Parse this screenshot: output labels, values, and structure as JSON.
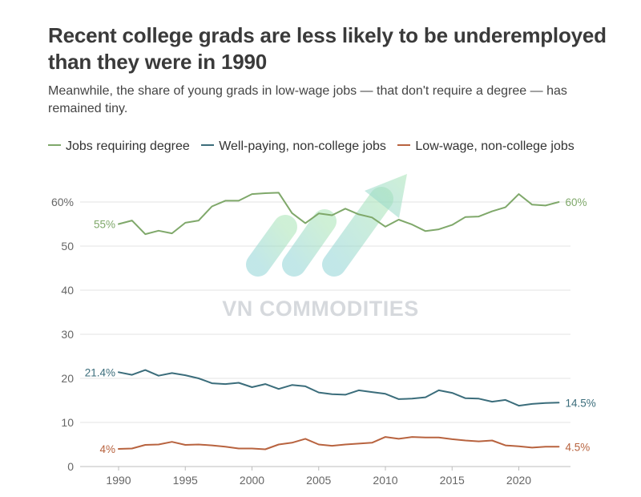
{
  "title": "Recent college grads are less likely to be underemployed than they were in 1990",
  "subtitle": "Meanwhile, the share of young grads in low-wage jobs — that don't require a degree — has remained tiny.",
  "watermark": "VN COMMODITIES",
  "chart_data": {
    "type": "line",
    "x": [
      1990,
      1991,
      1992,
      1993,
      1994,
      1995,
      1996,
      1997,
      1998,
      1999,
      2000,
      2001,
      2002,
      2003,
      2004,
      2005,
      2006,
      2007,
      2008,
      2009,
      2010,
      2011,
      2012,
      2013,
      2014,
      2015,
      2016,
      2017,
      2018,
      2019,
      2020,
      2021,
      2022,
      2023
    ],
    "series": [
      {
        "name": "Jobs requiring degree",
        "color": "#7fa86a",
        "values": [
          55,
          55.8,
          52.7,
          53.5,
          52.9,
          55.3,
          55.8,
          59,
          60.3,
          60.3,
          61.8,
          62,
          62.1,
          57.5,
          55.2,
          57.4,
          57,
          58.5,
          57.2,
          56.5,
          54.4,
          56,
          54.9,
          53.4,
          53.8,
          54.8,
          56.6,
          56.7,
          57.9,
          58.8,
          61.8,
          59.4,
          59.2,
          60
        ],
        "start_label": "55%",
        "end_label": "60%"
      },
      {
        "name": "Well-paying, non-college jobs",
        "color": "#3b6d7b",
        "values": [
          21.4,
          20.8,
          21.9,
          20.6,
          21.2,
          20.7,
          20,
          18.9,
          18.7,
          19,
          18,
          18.7,
          17.6,
          18.5,
          18.2,
          16.8,
          16.4,
          16.3,
          17.3,
          16.9,
          16.5,
          15.3,
          15.4,
          15.7,
          17.3,
          16.7,
          15.5,
          15.4,
          14.7,
          15.1,
          13.8,
          14.2,
          14.4,
          14.5
        ],
        "start_label": "21.4%",
        "end_label": "14.5%"
      },
      {
        "name": "Low-wage, non-college jobs",
        "color": "#b8633f",
        "values": [
          4,
          4.1,
          4.9,
          5,
          5.6,
          4.9,
          5,
          4.8,
          4.5,
          4.1,
          4.1,
          3.9,
          5,
          5.4,
          6.3,
          5,
          4.7,
          5,
          5.2,
          5.4,
          6.7,
          6.3,
          6.7,
          6.6,
          6.6,
          6.2,
          5.9,
          5.7,
          5.9,
          4.8,
          4.6,
          4.3,
          4.5,
          4.5
        ],
        "start_label": "4%",
        "end_label": "4.5%"
      }
    ],
    "y_ticks": [
      "60%",
      "50",
      "40",
      "30",
      "20",
      "10",
      "0"
    ],
    "x_ticks": [
      "1990",
      "1995",
      "2000",
      "2005",
      "2010",
      "2015",
      "2020"
    ],
    "ylim": [
      0,
      65
    ],
    "grid": true,
    "legend": "top"
  }
}
